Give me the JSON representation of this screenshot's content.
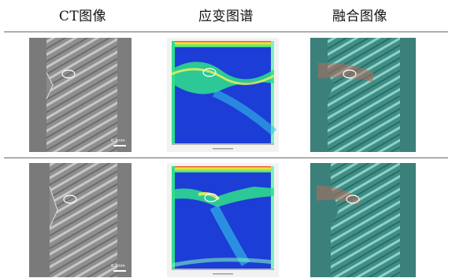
{
  "headers": {
    "ct": "CT图像",
    "strain": "应变图谱",
    "fusion": "融合图像"
  },
  "scale_bars": {
    "row1": "0.2mm",
    "row2": "0.2mm"
  },
  "colors": {
    "rule": "#6a6a6a",
    "ct_gray": "#8c8c8c",
    "strain_blue": "#1a3fd8",
    "strain_green": "#2fe08a",
    "strain_red": "#e83a1c",
    "fusion_teal": "#3e8f86",
    "fusion_red": "#b86a5c",
    "roi_ellipse": "#ffffff"
  },
  "icons": [
    "roi-ellipse-marker",
    "scale-bar"
  ]
}
